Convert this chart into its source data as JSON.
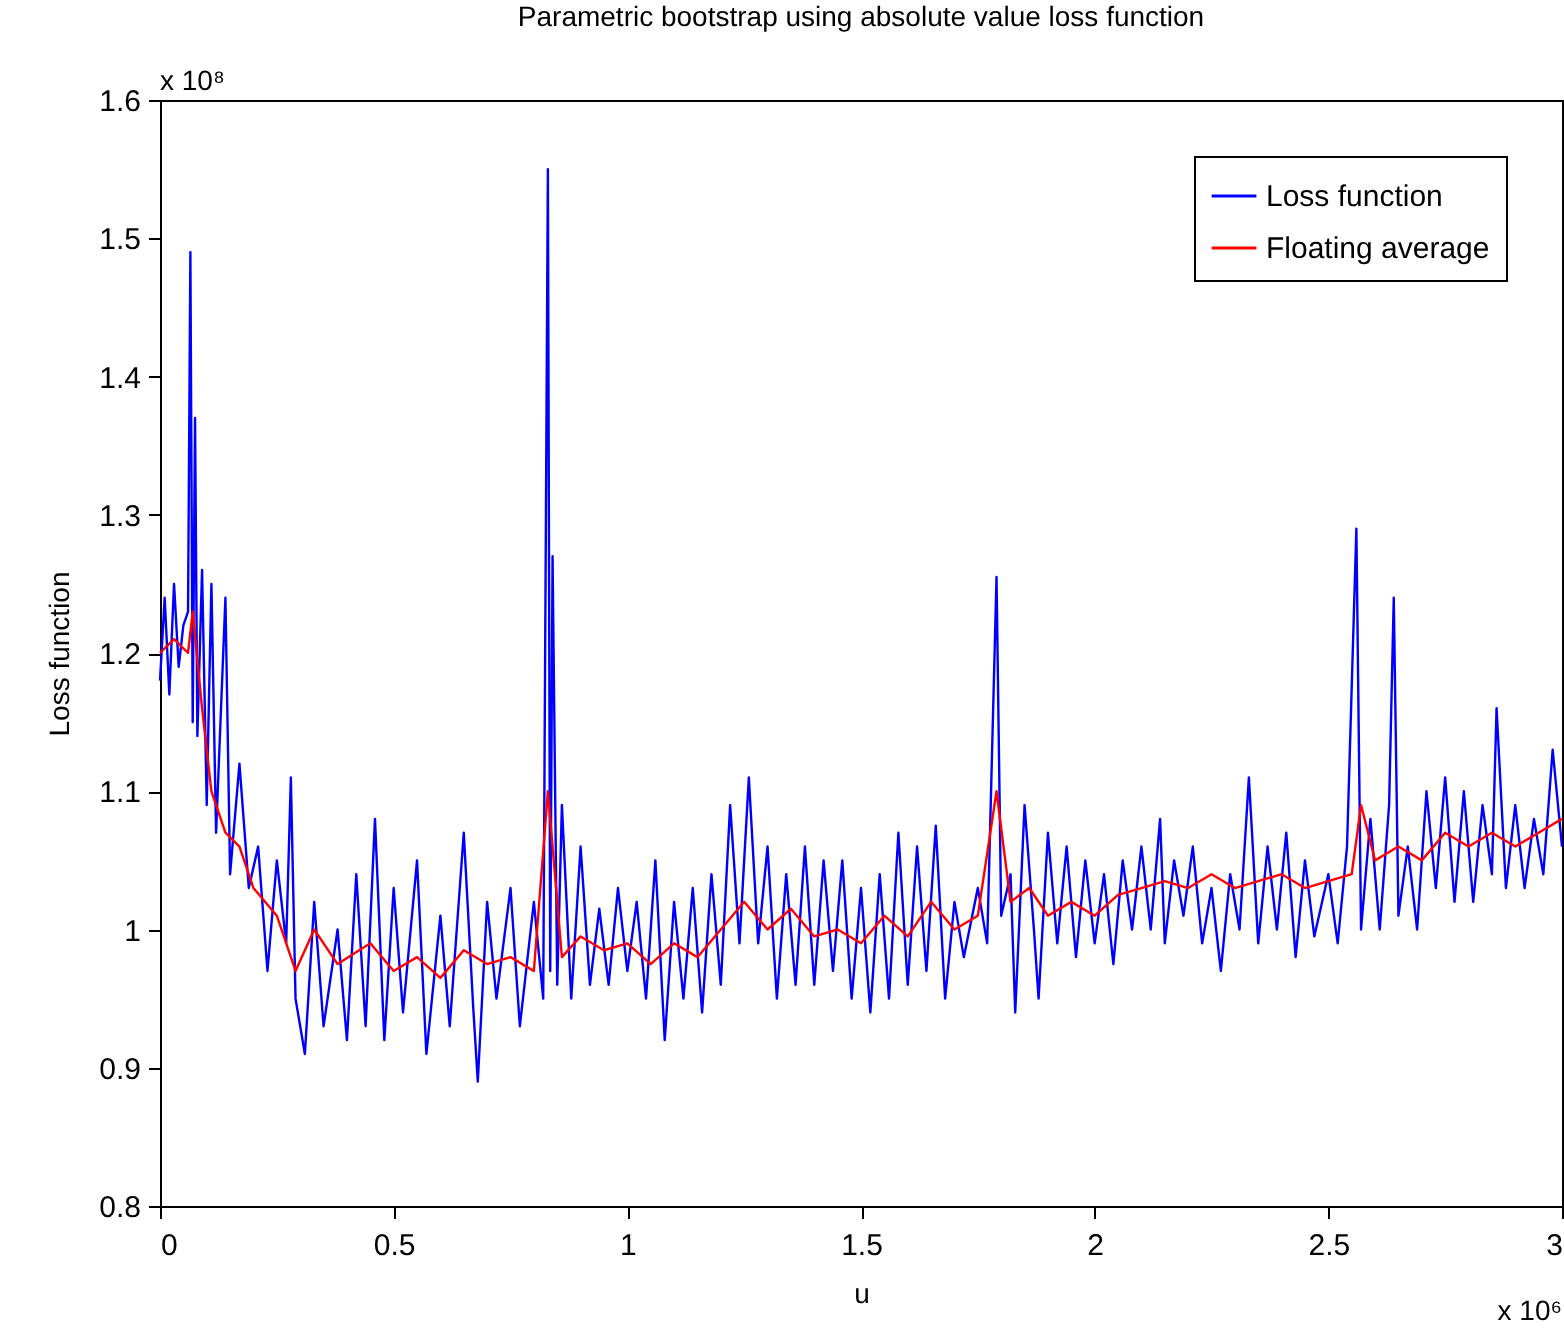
{
  "chart_data": {
    "type": "line",
    "title": "Parametric bootstrap using absolute value loss function",
    "xlabel": "u",
    "ylabel": "Loss function",
    "annotations": [
      "x 10⁸",
      "x 10⁶"
    ],
    "xlim": [
      0,
      3
    ],
    "xticks": [
      0,
      0.5,
      1,
      1.5,
      2,
      2.5,
      3
    ],
    "ylim": [
      0.8,
      1.6
    ],
    "yticks": [
      0.8,
      0.9,
      1,
      1.1,
      1.2,
      1.3,
      1.4,
      1.5,
      1.6
    ],
    "grid": false,
    "legend": "top right",
    "line_style": "solid",
    "marker": "none",
    "series": [
      {
        "name": "Loss function",
        "color": "#0000ff",
        "x": [
          0,
          0.01,
          0.02,
          0.03,
          0.04,
          0.05,
          0.06,
          0.065,
          0.07,
          0.075,
          0.08,
          0.09,
          0.1,
          0.11,
          0.12,
          0.14,
          0.15,
          0.17,
          0.19,
          0.21,
          0.23,
          0.25,
          0.27,
          0.28,
          0.29,
          0.31,
          0.33,
          0.35,
          0.38,
          0.4,
          0.42,
          0.44,
          0.46,
          0.48,
          0.5,
          0.52,
          0.55,
          0.57,
          0.6,
          0.62,
          0.65,
          0.67,
          0.68,
          0.7,
          0.72,
          0.75,
          0.77,
          0.8,
          0.82,
          0.83,
          0.835,
          0.84,
          0.85,
          0.86,
          0.88,
          0.9,
          0.92,
          0.94,
          0.96,
          0.98,
          1,
          1.02,
          1.04,
          1.06,
          1.08,
          1.1,
          1.12,
          1.14,
          1.16,
          1.18,
          1.2,
          1.22,
          1.24,
          1.26,
          1.28,
          1.3,
          1.32,
          1.34,
          1.36,
          1.38,
          1.4,
          1.42,
          1.44,
          1.46,
          1.48,
          1.5,
          1.52,
          1.54,
          1.56,
          1.58,
          1.6,
          1.62,
          1.64,
          1.66,
          1.68,
          1.7,
          1.72,
          1.75,
          1.77,
          1.79,
          1.8,
          1.82,
          1.83,
          1.85,
          1.87,
          1.88,
          1.9,
          1.92,
          1.94,
          1.96,
          1.98,
          2,
          2.02,
          2.04,
          2.06,
          2.08,
          2.1,
          2.12,
          2.14,
          2.15,
          2.17,
          2.19,
          2.21,
          2.23,
          2.25,
          2.27,
          2.29,
          2.31,
          2.33,
          2.35,
          2.37,
          2.39,
          2.41,
          2.43,
          2.45,
          2.47,
          2.5,
          2.52,
          2.54,
          2.56,
          2.57,
          2.59,
          2.61,
          2.63,
          2.64,
          2.65,
          2.67,
          2.69,
          2.71,
          2.73,
          2.75,
          2.77,
          2.79,
          2.81,
          2.83,
          2.85,
          2.86,
          2.88,
          2.9,
          2.92,
          2.94,
          2.96,
          2.98,
          3
        ],
        "values": [
          1.18,
          1.24,
          1.17,
          1.25,
          1.19,
          1.22,
          1.23,
          1.49,
          1.15,
          1.37,
          1.14,
          1.26,
          1.09,
          1.25,
          1.07,
          1.24,
          1.04,
          1.12,
          1.03,
          1.06,
          0.97,
          1.05,
          0.99,
          1.11,
          0.95,
          0.91,
          1.02,
          0.93,
          1,
          0.92,
          1.04,
          0.93,
          1.08,
          0.92,
          1.03,
          0.94,
          1.05,
          0.91,
          1.01,
          0.93,
          1.07,
          0.945,
          0.89,
          1.02,
          0.95,
          1.03,
          0.93,
          1.02,
          0.95,
          1.55,
          0.97,
          1.27,
          0.96,
          1.09,
          0.95,
          1.06,
          0.96,
          1.015,
          0.96,
          1.03,
          0.97,
          1.02,
          0.95,
          1.05,
          0.92,
          1.02,
          0.95,
          1.03,
          0.94,
          1.04,
          0.96,
          1.09,
          0.99,
          1.11,
          0.99,
          1.06,
          0.95,
          1.04,
          0.96,
          1.06,
          0.96,
          1.05,
          0.97,
          1.05,
          0.95,
          1.03,
          0.94,
          1.04,
          0.95,
          1.07,
          0.96,
          1.06,
          0.97,
          1.075,
          0.95,
          1.02,
          0.98,
          1.03,
          0.99,
          1.255,
          1.01,
          1.04,
          0.94,
          1.09,
          1,
          0.95,
          1.07,
          0.99,
          1.06,
          0.98,
          1.05,
          0.99,
          1.04,
          0.975,
          1.05,
          1,
          1.06,
          1,
          1.08,
          0.99,
          1.05,
          1.01,
          1.06,
          0.99,
          1.03,
          0.97,
          1.04,
          1,
          1.11,
          0.99,
          1.06,
          1,
          1.07,
          0.98,
          1.05,
          0.995,
          1.04,
          0.99,
          1.06,
          1.29,
          1,
          1.08,
          1,
          1.09,
          1.24,
          1.01,
          1.06,
          1,
          1.1,
          1.03,
          1.11,
          1.02,
          1.1,
          1.02,
          1.09,
          1.04,
          1.16,
          1.03,
          1.09,
          1.03,
          1.08,
          1.04,
          1.13,
          1.06
        ]
      },
      {
        "name": "Floating average",
        "color": "#ff0000",
        "x": [
          0,
          0.03,
          0.06,
          0.07,
          0.09,
          0.11,
          0.14,
          0.17,
          0.2,
          0.25,
          0.29,
          0.33,
          0.38,
          0.45,
          0.5,
          0.55,
          0.6,
          0.65,
          0.7,
          0.75,
          0.8,
          0.83,
          0.86,
          0.9,
          0.95,
          1,
          1.05,
          1.1,
          1.15,
          1.2,
          1.25,
          1.3,
          1.35,
          1.4,
          1.45,
          1.5,
          1.55,
          1.6,
          1.65,
          1.7,
          1.75,
          1.79,
          1.82,
          1.86,
          1.9,
          1.95,
          2,
          2.05,
          2.1,
          2.15,
          2.2,
          2.25,
          2.3,
          2.35,
          2.4,
          2.45,
          2.5,
          2.55,
          2.57,
          2.6,
          2.65,
          2.7,
          2.75,
          2.8,
          2.85,
          2.9,
          2.95,
          3
        ],
        "values": [
          1.2,
          1.21,
          1.2,
          1.23,
          1.16,
          1.1,
          1.07,
          1.06,
          1.03,
          1.01,
          0.97,
          1,
          0.975,
          0.99,
          0.97,
          0.98,
          0.965,
          0.985,
          0.975,
          0.98,
          0.97,
          1.1,
          0.98,
          0.995,
          0.985,
          0.99,
          0.975,
          0.99,
          0.98,
          1,
          1.02,
          1,
          1.015,
          0.995,
          1,
          0.99,
          1.01,
          0.995,
          1.02,
          1,
          1.01,
          1.1,
          1.02,
          1.03,
          1.01,
          1.02,
          1.01,
          1.025,
          1.03,
          1.035,
          1.03,
          1.04,
          1.03,
          1.035,
          1.04,
          1.03,
          1.035,
          1.04,
          1.09,
          1.05,
          1.06,
          1.05,
          1.07,
          1.06,
          1.07,
          1.06,
          1.07,
          1.08
        ]
      }
    ]
  }
}
